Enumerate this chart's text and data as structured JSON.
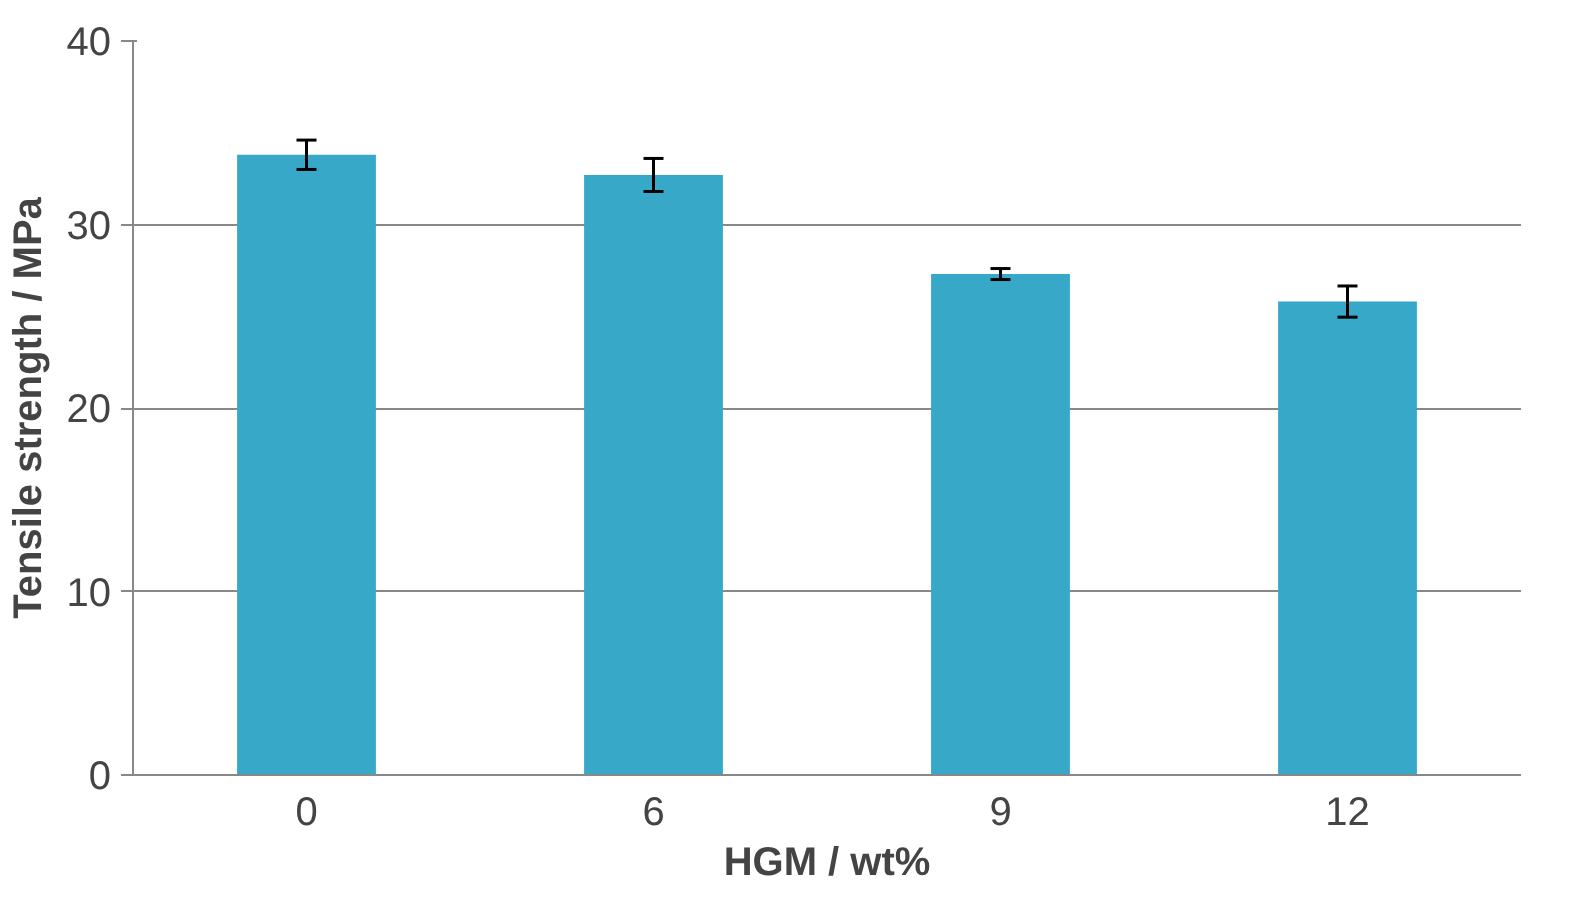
{
  "chart_data": {
    "type": "bar",
    "xlabel": "HGM / wt%",
    "ylabel": "Tensile strength / MPa",
    "categories": [
      "0",
      "6",
      "9",
      "12"
    ],
    "values": [
      33.8,
      32.7,
      27.3,
      25.8
    ],
    "errors": [
      0.8,
      0.9,
      0.3,
      0.85
    ],
    "color": "#37a8c8",
    "ylim": [
      0,
      40
    ],
    "yticks": [
      0,
      10,
      20,
      30,
      40
    ],
    "grid": "y"
  }
}
